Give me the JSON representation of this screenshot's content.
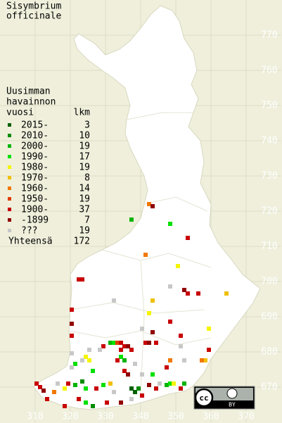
{
  "map": {
    "title": [
      "Sisymbrium",
      "officinale"
    ],
    "legend_header": [
      "Uusimman",
      "havainnon",
      "vuosi"
    ],
    "count_header": "lkm",
    "total_label": "Yhteensä",
    "total": 172,
    "xlim": [
      300,
      380
    ],
    "ylim": [
      660,
      780
    ],
    "xticks": [
      310,
      320,
      330,
      340,
      350,
      360,
      370
    ],
    "yticks": [
      670,
      680,
      690,
      700,
      710,
      720,
      730,
      740,
      750,
      760,
      770
    ],
    "grid": true,
    "license": {
      "cc": "cc",
      "by": "BY"
    },
    "legend": [
      {
        "label": "2015-",
        "count": 3,
        "color": "#006000",
        "x": [
          337.4,
          338.4
        ],
        "y": [
          669.6,
          668.6
        ]
      },
      {
        "label": "2010-",
        "count": 10,
        "color": "#008c00",
        "x": [
          323.4,
          339.4,
          326.4
        ],
        "y": [
          671.6,
          669.6,
          664.6
        ]
      },
      {
        "label": "2000-",
        "count": 19,
        "color": "#00b400",
        "x": [
          337.4,
          331.4,
          335.4,
          321.4,
          347.4,
          352.4
        ],
        "y": [
          717.6,
          682.6,
          677.6,
          670.6,
          670.6,
          671
        ]
      },
      {
        "label": "1990-",
        "count": 17,
        "color": "#00e000",
        "x": [
          348.4,
          332.4,
          334.4,
          321.4,
          326.4,
          343.4,
          324.4,
          329.4,
          348.4,
          324.4
        ],
        "y": [
          716.4,
          682.6,
          678.6,
          676.6,
          674.6,
          673.6,
          669.6,
          670.6,
          671,
          665.6
        ]
      },
      {
        "label": "1980-",
        "count": 19,
        "color": "#f5f500",
        "x": [
          350.6,
          342.4,
          359.4,
          324.4,
          325.4,
          318.4,
          349.4
        ],
        "y": [
          704.4,
          691,
          686.6,
          678.6,
          677.6,
          669.6,
          671
        ]
      },
      {
        "label": "1970-",
        "count": 8,
        "color": "#f0c000",
        "x": [
          364.4,
          343.4,
          358.4,
          331.4
        ],
        "y": [
          696.6,
          694.6,
          677.6,
          671
        ]
      },
      {
        "label": "1960-",
        "count": 14,
        "color": "#f07800",
        "x": [
          342.4,
          341.4,
          348.4,
          357.4,
          315.4
        ],
        "y": [
          722,
          707.6,
          677.6,
          677.6,
          668.6
        ]
      },
      {
        "label": "1950-",
        "count": 19,
        "color": "#e03c00",
        "x": [
          333.4
        ],
        "y": [
          682.6
        ]
      },
      {
        "label": "1900-",
        "count": 37,
        "color": "#c80000",
        "x": [
          353.4,
          322.4,
          323.4,
          353.4,
          356.4,
          320.4,
          348.4,
          351.4,
          320.4,
          334.4,
          335.4,
          334.4,
          337.4,
          329.4,
          341.4,
          344.4,
          359.4,
          333.4,
          347.4,
          335.4,
          310.4,
          311.4,
          319.4,
          327.4,
          344.4,
          351.4,
          322.4,
          330.4,
          340.4,
          318.4,
          313.4
        ],
        "y": [
          712.4,
          700.6,
          700.6,
          696.6,
          696.6,
          692,
          688.6,
          684.6,
          684.6,
          682.6,
          681.6,
          680.6,
          680.6,
          681.6,
          682.6,
          682.6,
          680.6,
          677.6,
          675.6,
          674.6,
          671,
          670,
          671,
          669.6,
          669.6,
          669.6,
          666.6,
          665.6,
          667.6,
          664.6,
          666.6
        ]
      },
      {
        "label": "-1899",
        "count": 7,
        "color": "#900000",
        "x": [
          343.4,
          352.4,
          320.4,
          343.4,
          336.4,
          342.4,
          336.4,
          312.4,
          342.4,
          334.4
        ],
        "y": [
          721.4,
          697.6,
          688,
          685.6,
          681.6,
          682.6,
          673.6,
          669,
          670.6,
          665.6
        ]
      },
      {
        "label": "???",
        "count": 19,
        "color": "#c8c8c8",
        "x": [
          348.4,
          332.4,
          340.4,
          328.4,
          351.4,
          325.4,
          320.4,
          323.4,
          338.4,
          320.4,
          352.4,
          340.4,
          316.4,
          332.4,
          345.4,
          337.4
        ],
        "y": [
          698.6,
          694.6,
          686.6,
          680.6,
          681.6,
          680.6,
          679.6,
          677.6,
          676.6,
          675.6,
          677.6,
          673.6,
          671,
          668.6,
          671,
          666.6
        ]
      }
    ]
  }
}
